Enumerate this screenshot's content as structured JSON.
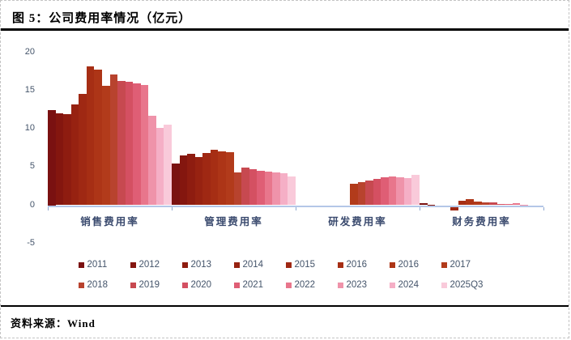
{
  "title": "图 5：公司费用率情况（亿元）",
  "source": "资料来源：Wind",
  "colors": {
    "axis": "#b4c7e7",
    "tick": "#8fa8d0",
    "axis_label": "#44546a",
    "category_label": "#3a4a6e",
    "divider": "#000000"
  },
  "chart_data": {
    "type": "bar",
    "title": "公司费用率情况（亿元）",
    "categories": [
      "销售费用率",
      "管理费用率",
      "研发费用率",
      "财务费用率"
    ],
    "ylim": [
      -5,
      20
    ],
    "yticks": [
      20,
      15,
      10,
      5,
      0,
      -5
    ],
    "grid": false,
    "legend_position": "bottom",
    "legend": [
      "2011",
      "2012",
      "2013",
      "2014",
      "2015",
      "2016",
      "2016",
      "2017",
      "2018",
      "2019",
      "2020",
      "2021",
      "2022",
      "2023",
      "2024",
      "2025Q3"
    ],
    "series_colors": [
      "#7a1111",
      "#84160f",
      "#8e1c10",
      "#972211",
      "#9f2813",
      "#a62e14",
      "#ad3517",
      "#b23b1b",
      "#b8432e",
      "#c74950",
      "#d45062",
      "#df5e75",
      "#e8768c",
      "#ef93aa",
      "#f5afc6",
      "#f9cada"
    ],
    "series": [
      {
        "name": "2011",
        "values": [
          12.5,
          5.5,
          0,
          0.25
        ]
      },
      {
        "name": "2012",
        "values": [
          12.1,
          6.5,
          0,
          0.05
        ]
      },
      {
        "name": "2013",
        "values": [
          11.9,
          6.7,
          0,
          0.0
        ]
      },
      {
        "name": "2014",
        "values": [
          13.2,
          6.3,
          0,
          -0.25
        ]
      },
      {
        "name": "2015",
        "values": [
          14.6,
          6.8,
          0,
          -0.65
        ]
      },
      {
        "name": "2016",
        "values": [
          18.2,
          7.3,
          0,
          0.55
        ]
      },
      {
        "name": "2016",
        "values": [
          17.8,
          7.1,
          0,
          0.75
        ]
      },
      {
        "name": "2017",
        "values": [
          15.7,
          7.0,
          2.8,
          0.45
        ]
      },
      {
        "name": "2018",
        "values": [
          17.1,
          4.3,
          3.0,
          0.4
        ]
      },
      {
        "name": "2019",
        "values": [
          16.3,
          4.9,
          3.2,
          0.35
        ]
      },
      {
        "name": "2020",
        "values": [
          16.2,
          4.75,
          3.5,
          0.2
        ]
      },
      {
        "name": "2021",
        "values": [
          16.0,
          4.5,
          3.7,
          0.15
        ]
      },
      {
        "name": "2022",
        "values": [
          15.8,
          4.4,
          3.8,
          0.25
        ]
      },
      {
        "name": "2023",
        "values": [
          11.7,
          4.3,
          3.7,
          0.05
        ]
      },
      {
        "name": "2024",
        "values": [
          10.1,
          4.2,
          3.6,
          -0.25
        ]
      },
      {
        "name": "2025Q3",
        "values": [
          10.6,
          3.8,
          4.0,
          -0.1
        ]
      }
    ]
  }
}
